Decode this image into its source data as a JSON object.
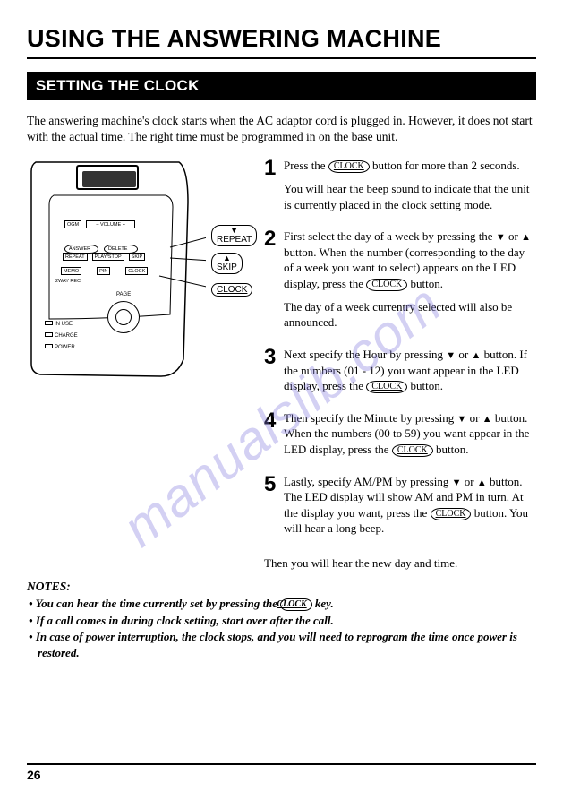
{
  "page": {
    "title": "USING THE ANSWERING MACHINE",
    "number": "26"
  },
  "section": {
    "header": "SETTING THE CLOCK",
    "intro": "The answering machine's clock starts when the AC adaptor cord is plugged in. However, it does not start with the actual time. The right time must be programmed in on the base unit."
  },
  "diagram": {
    "buttons": {
      "ogm": "OGM",
      "volume": "– VOLUME +",
      "answer": "ANSWER",
      "delete": "DELETE",
      "repeat": "REPEAT",
      "playstop": "PLAY/STOP",
      "skip": "SKIP",
      "memo": "MEMO",
      "pin": "PIN",
      "clock": "CLOCK",
      "twoway": "2WAY REC",
      "page": "PAGE"
    },
    "leds": {
      "inuse": "IN USE",
      "charge": "CHARGE",
      "power": "POWER"
    },
    "callouts": {
      "repeat": "REPEAT",
      "skip": "SKIP",
      "clock": "CLOCK"
    }
  },
  "steps": [
    {
      "num": "1",
      "paras": [
        "Press the [CLOCK] button for more than 2 seconds.",
        "You will hear the beep sound to indicate that the unit is currently placed in the clock setting mode."
      ]
    },
    {
      "num": "2",
      "paras": [
        "First select the day of a week by pressing the ▼ or ▲ button.  When the number (corresponding to the day of a week you want to select) appears on the LED display, press the [CLOCK] button.",
        "The day of a week currentry selected will also be announced."
      ]
    },
    {
      "num": "3",
      "paras": [
        "Next specify the Hour by pressing ▼ or ▲ button. If the numbers (01 - 12) you want appear in the LED display, press the [CLOCK] button."
      ]
    },
    {
      "num": "4",
      "paras": [
        "Then specify the Minute by pressing ▼ or ▲ button. When the numbers (00 to 59) you want appear in the LED display, press the [CLOCK] button."
      ]
    },
    {
      "num": "5",
      "paras": [
        "Lastly, specify AM/PM by pressing ▼ or ▲ button. The LED display will show AM and PM in turn. At the display you want, press the [CLOCK] button. You will hear a long beep."
      ]
    }
  ],
  "afterSteps": "Then you will hear the new day and time.",
  "notes": {
    "title": "NOTES:",
    "items": [
      "You can hear the time currently set by pressing the [CLOCK] key.",
      "If a call comes in during clock setting, start over after the call.",
      "In case of power interruption, the clock stops, and you will need to reprogram the time once power is restored."
    ]
  },
  "watermark": "manualslib.com",
  "style": {
    "titleFont": "Arial",
    "bodyFont": "Georgia",
    "titleSize": 27,
    "sectionHeaderSize": 17,
    "bodySize": 13,
    "stepNumSize": 24,
    "colors": {
      "text": "#000000",
      "sectionBg": "#000000",
      "sectionFg": "#ffffff",
      "watermark": "rgba(130,120,220,0.35)"
    }
  }
}
